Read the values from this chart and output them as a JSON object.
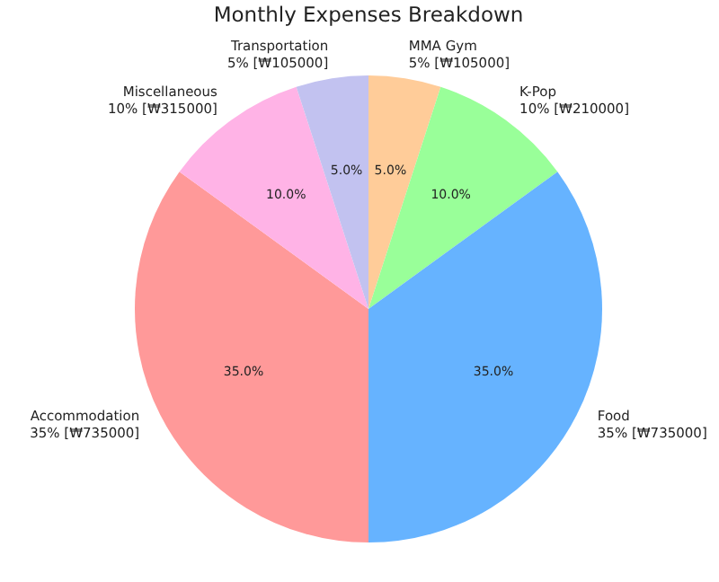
{
  "chart_data": {
    "type": "pie",
    "title": "Monthly Expenses Breakdown",
    "categories": [
      "MMA Gym\n5% [₩105000]",
      "K-Pop\n10% [₩210000]",
      "Food\n35% [₩735000]",
      "Accommodation\n35% [₩735000]",
      "Miscellaneous\n10% [₩315000]",
      "Transportation\n5% [₩105000]"
    ],
    "values": [
      5,
      10,
      35,
      35,
      10,
      5
    ],
    "value_labels": [
      "5.0%",
      "10.0%",
      "35.0%",
      "35.0%",
      "10.0%",
      "5.0%"
    ],
    "colors": [
      "#ffcc99",
      "#99ff99",
      "#66b3ff",
      "#ff9999",
      "#ffb3e6",
      "#c2c2f0"
    ],
    "legend": false
  }
}
